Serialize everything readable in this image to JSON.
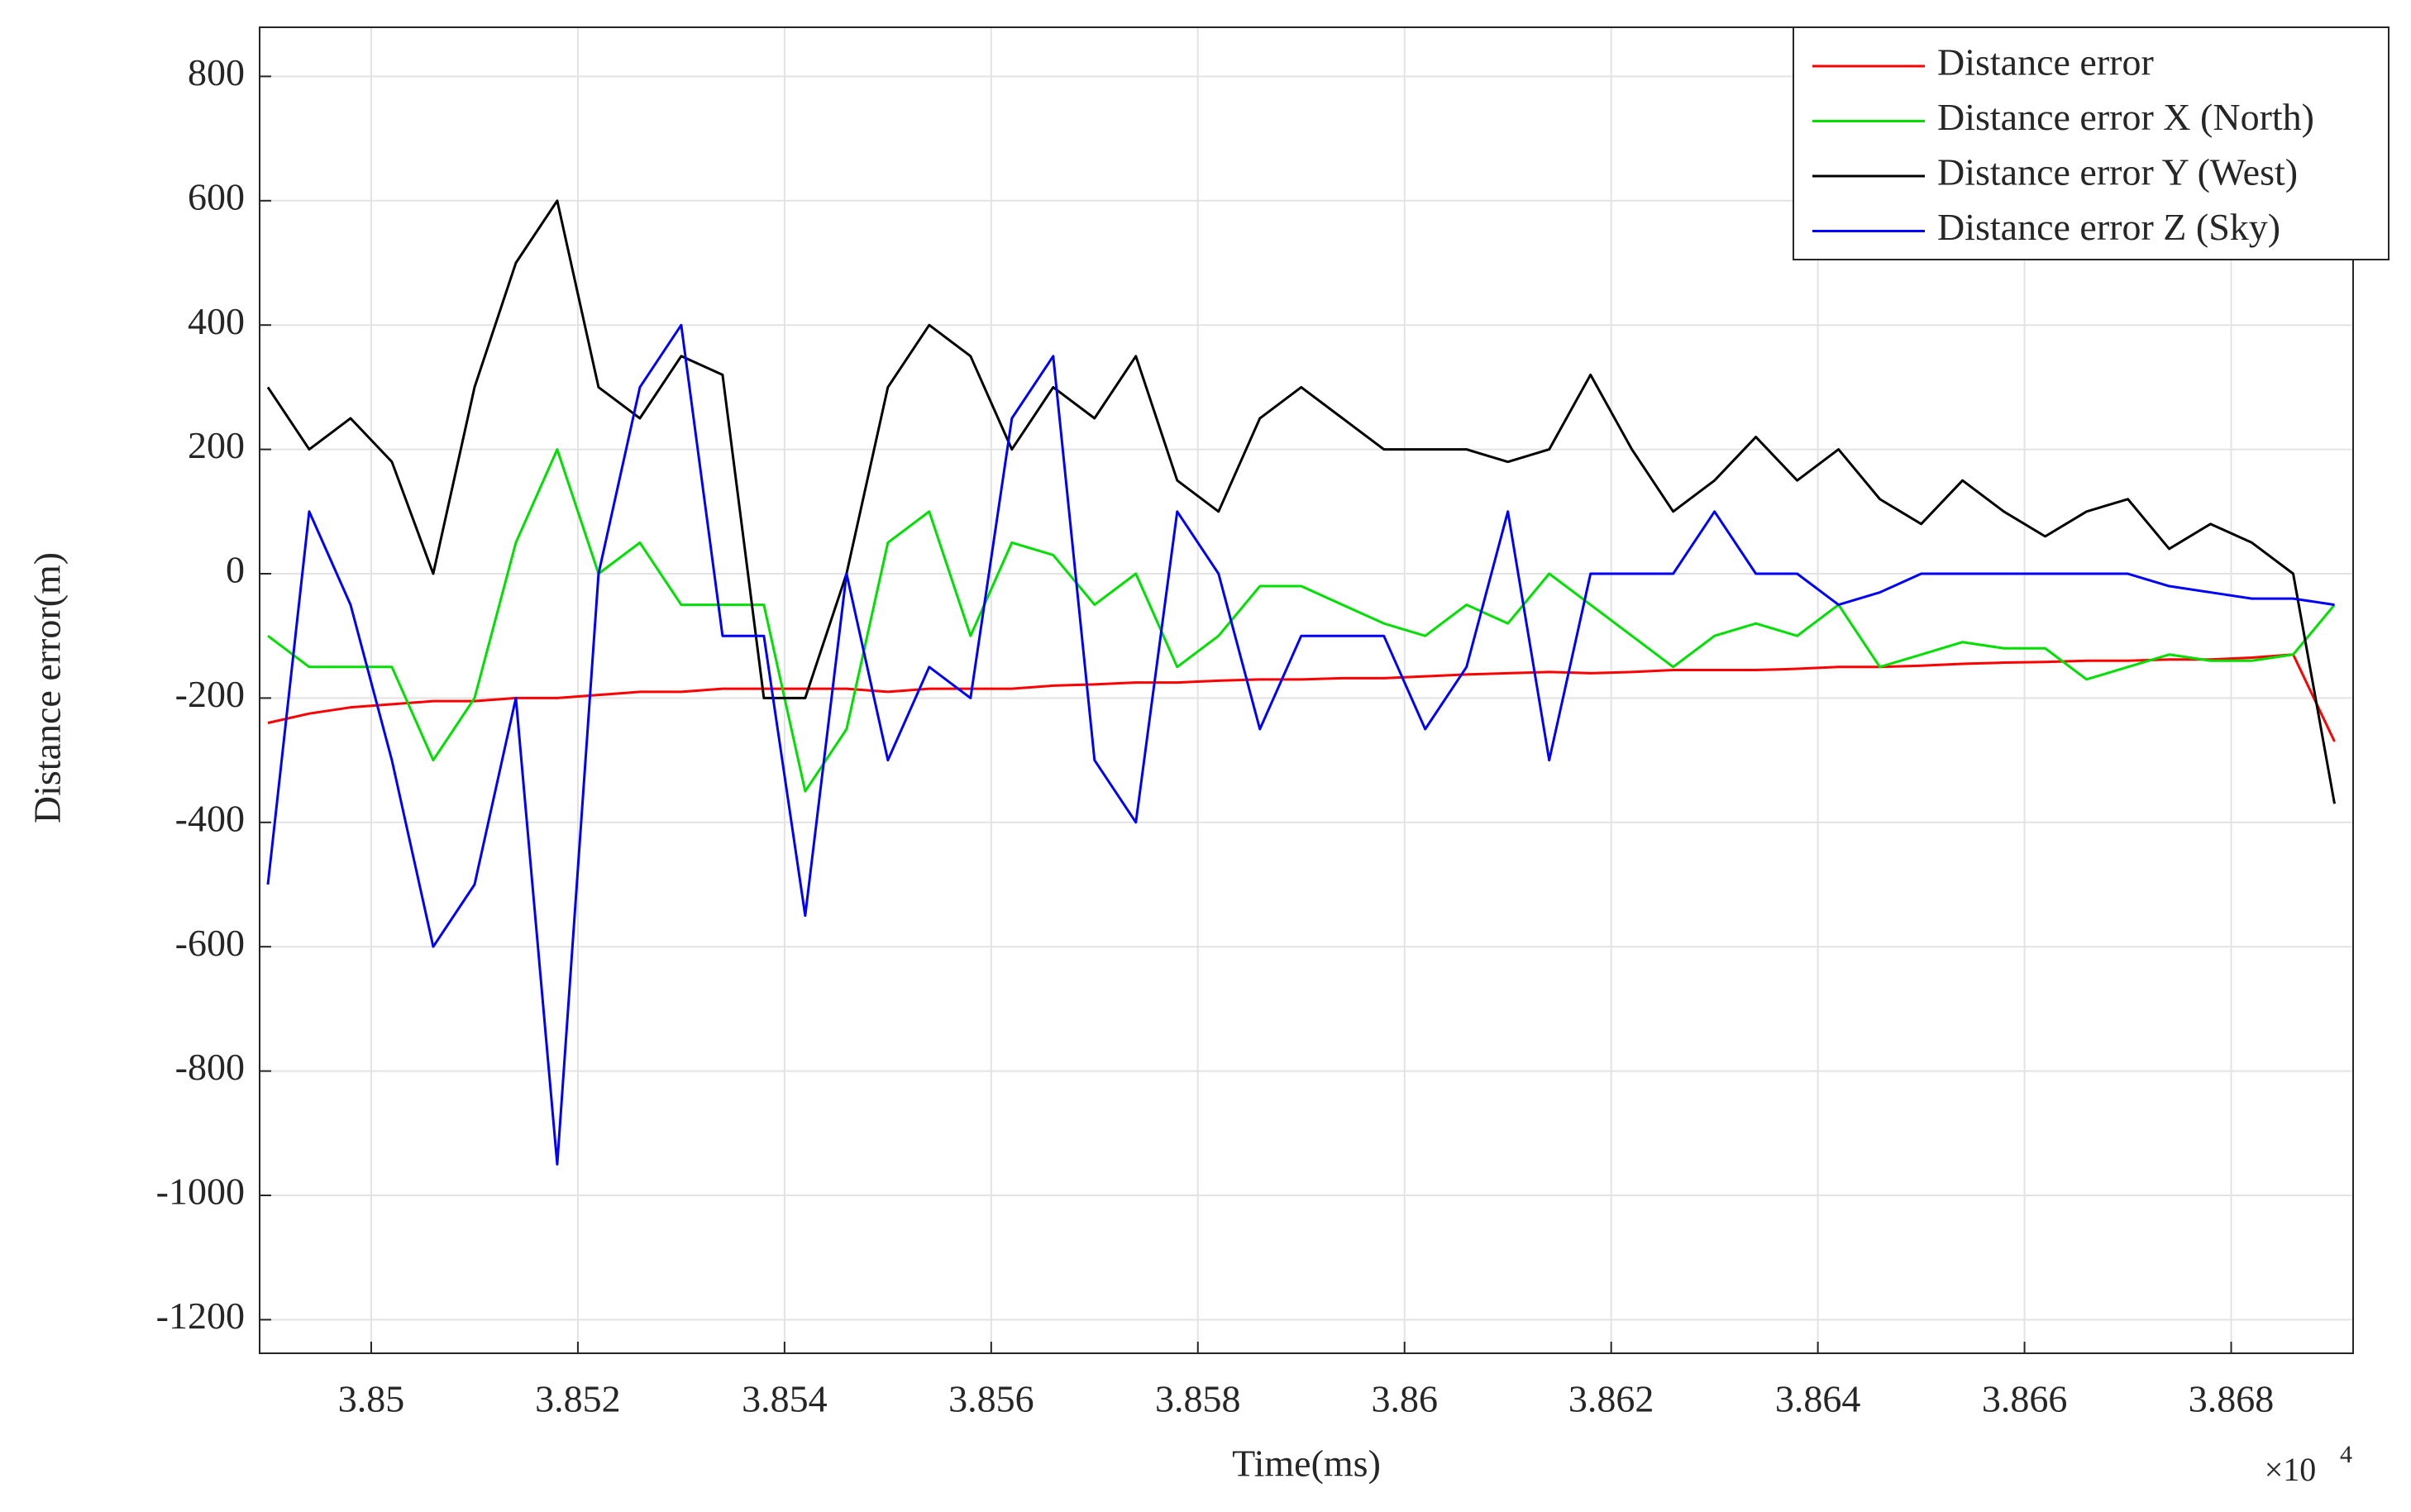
{
  "chart_data": {
    "type": "line",
    "xlabel": "Time(ms)",
    "ylabel": "Distance error(m)",
    "x_multiplier": {
      "base": "×10",
      "exponent": "4"
    },
    "x": [
      38490,
      38494,
      38498,
      38502,
      38506,
      38510,
      38514,
      38518,
      38522,
      38526,
      38530,
      38534,
      38538,
      38542,
      38546,
      38550,
      38554,
      38558,
      38562,
      38566,
      38570,
      38574,
      38578,
      38582,
      38586,
      38590,
      38594,
      38598,
      38602,
      38606,
      38610,
      38614,
      38618,
      38622,
      38626,
      38630,
      38634,
      38638,
      38642,
      38646,
      38650,
      38654,
      38658,
      38662,
      38666,
      38670,
      38674,
      38678,
      38682,
      38686,
      38690
    ],
    "series": [
      {
        "name": "Distance error",
        "color": "#ff0000",
        "values": [
          -240,
          -225,
          -215,
          -210,
          -205,
          -205,
          -200,
          -200,
          -195,
          -190,
          -190,
          -185,
          -185,
          -185,
          -185,
          -190,
          -185,
          -185,
          -185,
          -180,
          -178,
          -175,
          -175,
          -172,
          -170,
          -170,
          -168,
          -168,
          -165,
          -162,
          -160,
          -158,
          -160,
          -158,
          -155,
          -155,
          -155,
          -153,
          -150,
          -150,
          -148,
          -145,
          -143,
          -142,
          -140,
          -140,
          -138,
          -138,
          -135,
          -130,
          -270
        ]
      },
      {
        "name": "Distance error X (North)",
        "color": "#00e000",
        "values": [
          -100,
          -150,
          -150,
          -150,
          -300,
          -200,
          50,
          200,
          0,
          50,
          -50,
          -50,
          -50,
          -350,
          -250,
          50,
          100,
          -100,
          50,
          30,
          -50,
          0,
          -150,
          -100,
          -20,
          -20,
          -50,
          -80,
          -100,
          -50,
          -80,
          0,
          -50,
          -100,
          -150,
          -100,
          -80,
          -100,
          -50,
          -150,
          -130,
          -110,
          -120,
          -120,
          -170,
          -150,
          -130,
          -140,
          -140,
          -130,
          -50
        ]
      },
      {
        "name": "Distance error Y (West)",
        "color": "#000000",
        "values": [
          300,
          200,
          250,
          180,
          0,
          300,
          500,
          600,
          300,
          250,
          350,
          320,
          -200,
          -200,
          0,
          300,
          400,
          350,
          200,
          300,
          250,
          350,
          150,
          100,
          250,
          300,
          250,
          200,
          200,
          200,
          180,
          200,
          320,
          200,
          100,
          150,
          220,
          150,
          200,
          120,
          80,
          150,
          100,
          60,
          100,
          120,
          40,
          80,
          50,
          0,
          -370
        ]
      },
      {
        "name": "Distance error Z (Sky)",
        "color": "#0000ff",
        "values": [
          -500,
          100,
          -50,
          -300,
          -600,
          -500,
          -200,
          -950,
          0,
          300,
          400,
          -100,
          -100,
          -550,
          0,
          -300,
          -150,
          -200,
          250,
          350,
          -300,
          -400,
          100,
          0,
          -250,
          -100,
          -100,
          -100,
          -250,
          -150,
          100,
          -300,
          0,
          0,
          0,
          100,
          0,
          0,
          -50,
          -30,
          0,
          0,
          0,
          0,
          0,
          0,
          -20,
          -30,
          -40,
          -40,
          -50
        ]
      }
    ],
    "xlim": [
      38489.2,
      38691.8
    ],
    "xticks": [
      {
        "value": 38500,
        "label": "3.85"
      },
      {
        "value": 38520,
        "label": "3.852"
      },
      {
        "value": 38540,
        "label": "3.854"
      },
      {
        "value": 38560,
        "label": "3.856"
      },
      {
        "value": 38580,
        "label": "3.858"
      },
      {
        "value": 38600,
        "label": "3.86"
      },
      {
        "value": 38620,
        "label": "3.862"
      },
      {
        "value": 38640,
        "label": "3.864"
      },
      {
        "value": 38660,
        "label": "3.866"
      },
      {
        "value": 38680,
        "label": "3.868"
      }
    ],
    "ylim": [
      -1254,
      879
    ],
    "yticks": [
      -1200,
      -1000,
      -800,
      -600,
      -400,
      -200,
      0,
      200,
      400,
      600,
      800
    ],
    "grid": true,
    "legend": "upper right"
  }
}
